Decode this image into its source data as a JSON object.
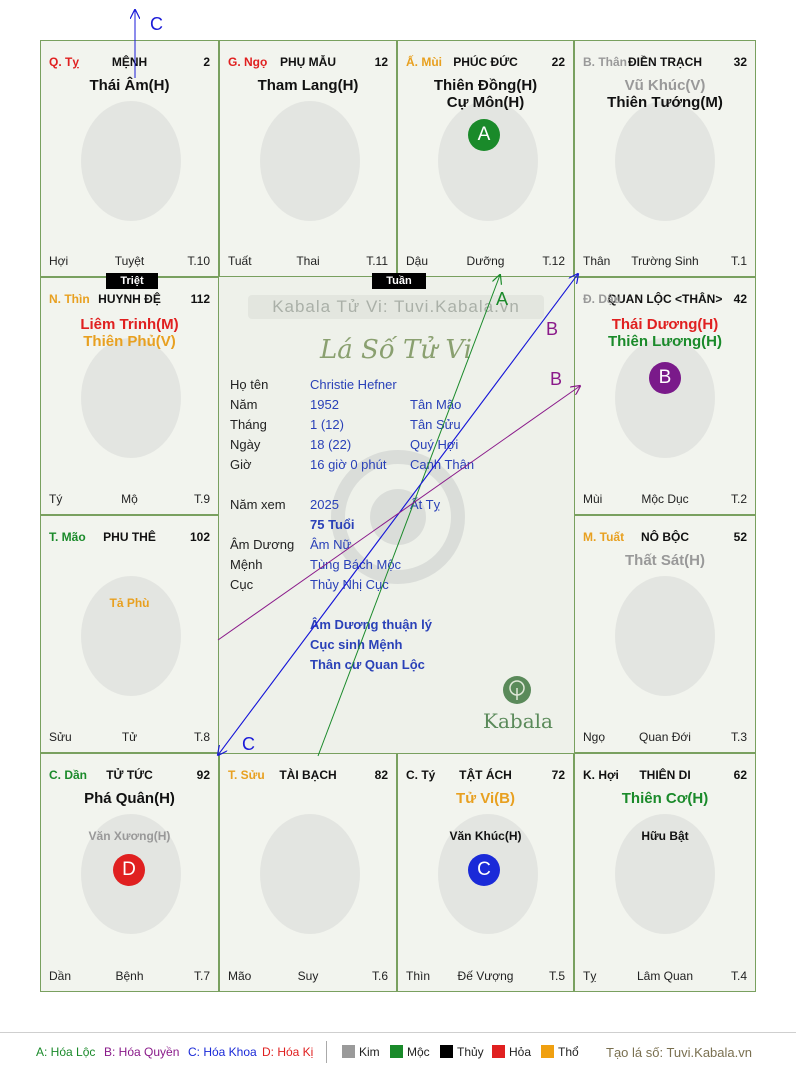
{
  "watermark": "Kabala Tử Vi: Tuvi.Kabala.vn",
  "center_title": "Lá Số Tử Vi",
  "logo_text": "Kabala",
  "tags": {
    "triet": "Triệt",
    "tuan": "Tuần"
  },
  "info": {
    "name": {
      "label": "Họ tên",
      "value": "Christie Hefner"
    },
    "year": {
      "label": "Năm",
      "value": "1952",
      "value2": "Tân Mão"
    },
    "month": {
      "label": "Tháng",
      "value": "1  (12)",
      "value2": "Tân Sửu"
    },
    "day": {
      "label": "Ngày",
      "value": "18  (22)",
      "value2": "Quý Hợi"
    },
    "hour": {
      "label": "Giờ",
      "value": "16 giờ 0 phút",
      "value2": "Canh Thân"
    },
    "view_year": {
      "label": "Năm xem",
      "value": "2025",
      "value2": "Ất Tỵ"
    },
    "age": "75 Tuổi",
    "amduong": {
      "label": "Âm Dương",
      "value": "Âm Nữ"
    },
    "menh": {
      "label": "Mệnh",
      "value": "Tùng Bách Mộc"
    },
    "cuc": {
      "label": "Cục",
      "value": "Thủy Nhị Cục"
    },
    "note1": "Âm Dương thuận lý",
    "note2": "Cục sinh Mệnh",
    "note3": "Thân cư Quan Lộc"
  },
  "palaces": [
    {
      "branch": "Q. Tỵ",
      "branch_color": "#e02020",
      "name": "MỆNH",
      "num": "2",
      "stars": [
        {
          "text": "Thái Âm(H)",
          "color": "#111"
        }
      ],
      "minor": [],
      "foot": [
        "Hợi",
        "Tuyệt",
        "T.10"
      ]
    },
    {
      "branch": "G. Ngọ",
      "branch_color": "#e02020",
      "name": "PHỤ MẪU",
      "num": "12",
      "stars": [
        {
          "text": "Tham Lang(H)",
          "color": "#111"
        }
      ],
      "minor": [],
      "foot": [
        "Tuất",
        "Thai",
        "T.11"
      ]
    },
    {
      "branch": "Ấ. Mùi",
      "branch_color": "#e8a020",
      "name": "PHÚC ĐỨC",
      "num": "22",
      "stars": [
        {
          "text": "Thiên Đồng(H)",
          "color": "#111"
        },
        {
          "text": "Cự Môn(H)",
          "color": "#111"
        }
      ],
      "minor": [],
      "foot": [
        "Dậu",
        "Dưỡng",
        "T.12"
      ]
    },
    {
      "branch": "B. Thân",
      "branch_color": "#999",
      "name": "ĐIỀN TRẠCH",
      "num": "32",
      "stars": [
        {
          "text": "Vũ Khúc(V)",
          "color": "#999"
        },
        {
          "text": "Thiên Tướng(M)",
          "color": "#111"
        }
      ],
      "minor": [],
      "foot": [
        "Thân",
        "Trường Sinh",
        "T.1"
      ]
    },
    {
      "branch": "N. Thìn",
      "branch_color": "#e8a020",
      "name": "HUYNH ĐỆ",
      "num": "112",
      "stars": [
        {
          "text": "Liêm Trinh(M)",
          "color": "#e02020"
        },
        {
          "text": "Thiên Phủ(V)",
          "color": "#e8a020"
        }
      ],
      "minor": [],
      "foot": [
        "Tý",
        "Mộ",
        "T.9"
      ]
    },
    {
      "branch": "Đ. Dậu",
      "branch_color": "#999",
      "name": "QUAN LỘC <THÂN>",
      "num": "42",
      "stars": [
        {
          "text": "Thái Dương(H)",
          "color": "#e02020"
        },
        {
          "text": "Thiên Lương(H)",
          "color": "#1a8a2a"
        }
      ],
      "minor": [],
      "foot": [
        "Mùi",
        "Mộc Dục",
        "T.2"
      ]
    },
    {
      "branch": "T. Mão",
      "branch_color": "#1a8a2a",
      "name": "PHU THÊ",
      "num": "102",
      "stars": [],
      "minor": [
        {
          "text": "Tả Phù",
          "color": "#e8a020"
        }
      ],
      "foot": [
        "Sửu",
        "Tử",
        "T.8"
      ]
    },
    {
      "branch": "M. Tuất",
      "branch_color": "#e8a020",
      "name": "NÔ BỘC",
      "num": "52",
      "stars": [
        {
          "text": "Thất Sát(H)",
          "color": "#999"
        }
      ],
      "minor": [],
      "foot": [
        "Ngọ",
        "Quan Đới",
        "T.3"
      ]
    },
    {
      "branch": "C. Dần",
      "branch_color": "#1a8a2a",
      "name": "TỬ TỨC",
      "num": "92",
      "stars": [
        {
          "text": "Phá Quân(H)",
          "color": "#111"
        }
      ],
      "minor": [
        {
          "text": "Văn Xương(H)",
          "color": "#999"
        }
      ],
      "foot": [
        "Dần",
        "Bệnh",
        "T.7"
      ]
    },
    {
      "branch": "T. Sửu",
      "branch_color": "#e8a020",
      "name": "TÀI BẠCH",
      "num": "82",
      "stars": [],
      "minor": [],
      "foot": [
        "Mão",
        "Suy",
        "T.6"
      ]
    },
    {
      "branch": "C. Tý",
      "branch_color": "#111",
      "name": "TẬT ÁCH",
      "num": "72",
      "stars": [
        {
          "text": "Tử Vi(B)",
          "color": "#e8a020"
        }
      ],
      "minor": [
        {
          "text": "Văn Khúc(H)",
          "color": "#111"
        }
      ],
      "foot": [
        "Thìn",
        "Đế Vượng",
        "T.5"
      ]
    },
    {
      "branch": "K. Hợi",
      "branch_color": "#111",
      "name": "THIÊN DI",
      "num": "62",
      "stars": [
        {
          "text": "Thiên Cơ(H)",
          "color": "#1a8a2a"
        }
      ],
      "minor": [
        {
          "text": "Hữu Bật",
          "color": "#111"
        }
      ],
      "foot": [
        "Tỵ",
        "Lâm Quan",
        "T.4"
      ]
    }
  ],
  "badges": [
    {
      "letter": "A",
      "color": "#1a8a2a"
    },
    {
      "letter": "B",
      "color": "#7a1a8a"
    },
    {
      "letter": "C",
      "color": "#1a2ad8"
    },
    {
      "letter": "D",
      "color": "#e02020"
    }
  ],
  "arrow_labels": {
    "a": "A",
    "b": "B",
    "c": "C"
  },
  "legend": {
    "a": "A: Hóa Lộc",
    "b": "B: Hóa Quyền",
    "c": "C: Hóa Khoa",
    "d": "D: Hóa Kị",
    "kim": "Kim",
    "moc": "Mộc",
    "thuy": "Thủy",
    "hoa": "Hỏa",
    "tho": "Thổ",
    "colors": {
      "kim": "#9a9a9a",
      "moc": "#1a8a2a",
      "thuy": "#000000",
      "hoa": "#e02020",
      "tho": "#f0a010"
    },
    "site": "Tạo lá số: Tuvi.Kabala.vn"
  }
}
